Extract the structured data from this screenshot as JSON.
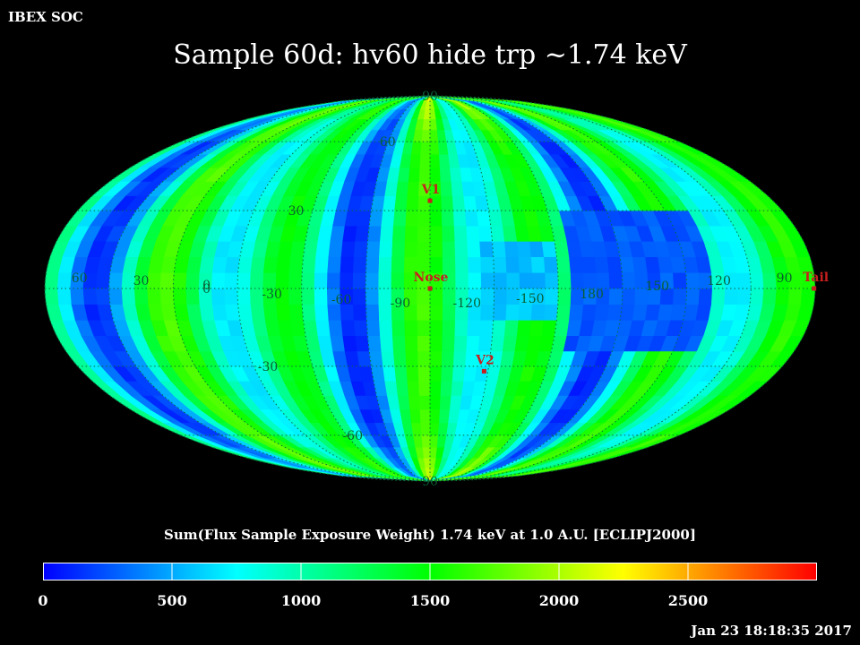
{
  "header": {
    "org": "IBEX SOC",
    "title": "Sample 60d: hv60 hide trp ~1.74 keV"
  },
  "map": {
    "projection": "Mollweide",
    "center_lon_deg": -90,
    "grid": {
      "lon_step_deg": 30,
      "lat_step_deg": 30
    },
    "lat_labels": [
      "90",
      "60",
      "30",
      "0",
      "-30",
      "-60",
      "90"
    ],
    "lon_labels": [
      "60",
      "30",
      "0",
      "-30",
      "-60",
      "-90",
      "-120",
      "-150",
      "180",
      "150",
      "120",
      "90"
    ],
    "markers": [
      {
        "label": "V1",
        "lon": -90,
        "lat": 34
      },
      {
        "label": "Nose",
        "lon": -90,
        "lat": 0
      },
      {
        "label": "V2",
        "lon": -118,
        "lat": -32
      },
      {
        "label": "Tail",
        "lon": 90,
        "lat": 0
      }
    ],
    "marker_color": "#c81e1e",
    "grid_color": "#0b6b3a"
  },
  "colorbar": {
    "label": "Sum(Flux Sample Exposure Weight)  1.74 keV at 1.0 A.U. [ECLIPJ2000]",
    "min": 0,
    "max": 3000,
    "ticks": [
      "0",
      "500",
      "1000",
      "1500",
      "2000",
      "2500"
    ],
    "stops": [
      "#0000ff",
      "#00ffff",
      "#00ff00",
      "#ffff00",
      "#ff0000"
    ]
  },
  "footer": {
    "timestamp": "Jan 23 18:18:35 2017"
  }
}
